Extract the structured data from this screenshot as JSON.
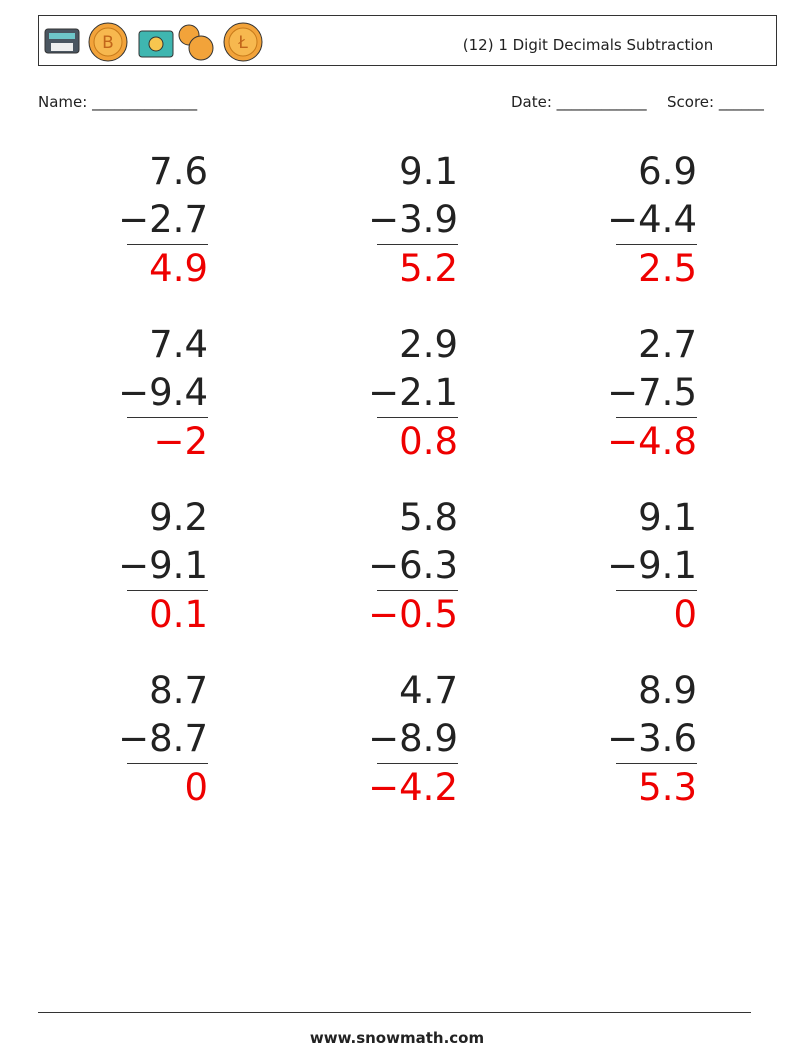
{
  "header": {
    "title": "(12) 1 Digit Decimals Subtraction"
  },
  "fields": {
    "name": "Name: ______________",
    "date": "Date: ____________",
    "score": "Score: ______"
  },
  "problems": [
    {
      "top": "7.6",
      "bottom": "−2.7",
      "answer": "4.9"
    },
    {
      "top": "9.1",
      "bottom": "−3.9",
      "answer": "5.2"
    },
    {
      "top": "6.9",
      "bottom": "−4.4",
      "answer": "2.5"
    },
    {
      "top": "7.4",
      "bottom": "−9.4",
      "answer": "−2"
    },
    {
      "top": "2.9",
      "bottom": "−2.1",
      "answer": "0.8"
    },
    {
      "top": "2.7",
      "bottom": "−7.5",
      "answer": "−4.8"
    },
    {
      "top": "9.2",
      "bottom": "−9.1",
      "answer": "0.1"
    },
    {
      "top": "5.8",
      "bottom": "−6.3",
      "answer": "−0.5"
    },
    {
      "top": "9.1",
      "bottom": "−9.1",
      "answer": "0"
    },
    {
      "top": "8.7",
      "bottom": "−8.7",
      "answer": "0"
    },
    {
      "top": "4.7",
      "bottom": "−8.9",
      "answer": "−4.2"
    },
    {
      "top": "8.9",
      "bottom": "−3.6",
      "answer": "5.3"
    }
  ],
  "footer": {
    "site": "www.snowmath.com"
  }
}
